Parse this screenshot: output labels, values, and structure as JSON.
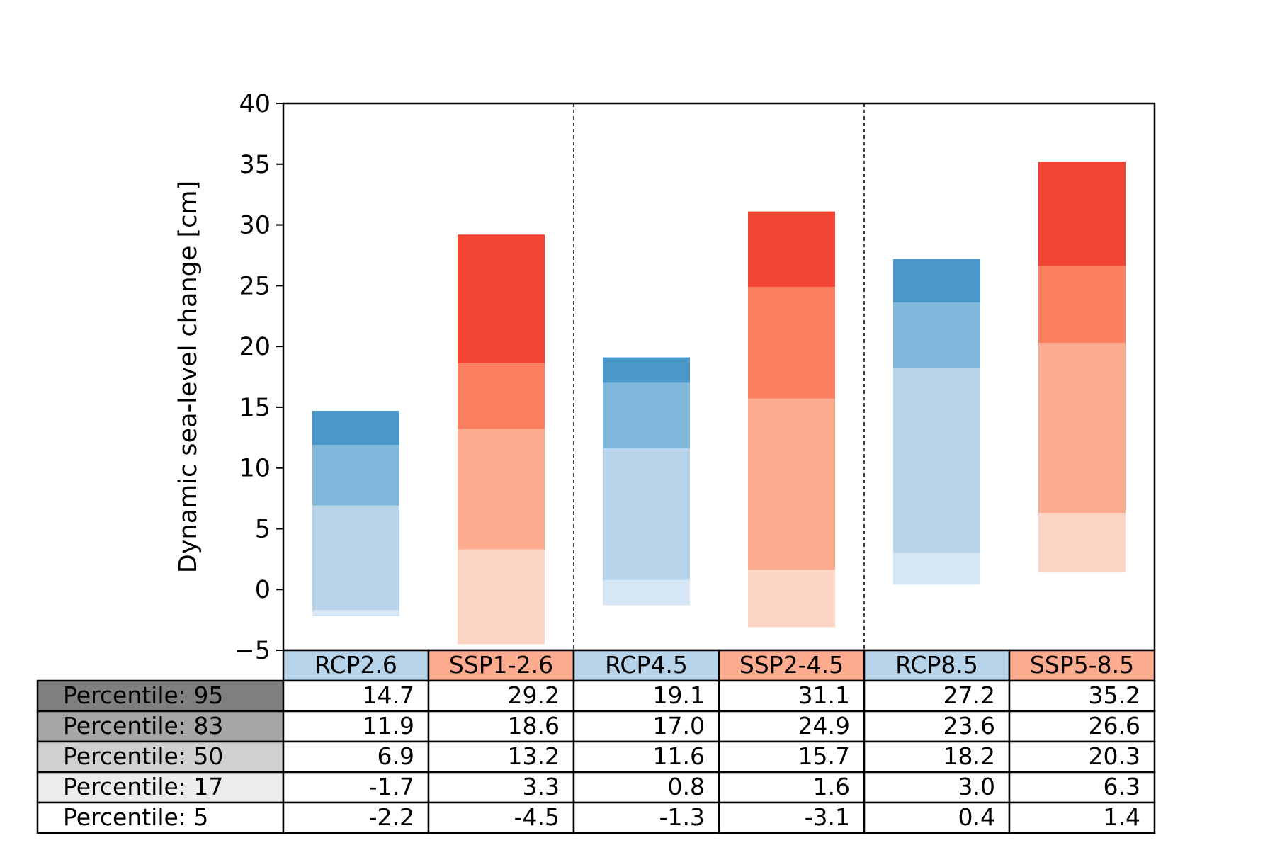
{
  "chart_data": {
    "type": "bar",
    "ylabel": "Dynamic sea-level change [cm]",
    "ylim": [
      -5,
      40
    ],
    "yticks": [
      -5,
      0,
      5,
      10,
      15,
      20,
      25,
      30,
      35,
      40
    ],
    "ytick_labels": [
      "−5",
      "0",
      "5",
      "10",
      "15",
      "20",
      "25",
      "30",
      "35",
      "40"
    ],
    "grid": false,
    "legend": "none",
    "categories": [
      "RCP2.6",
      "SSP1-2.6",
      "RCP4.5",
      "SSP2-4.5",
      "RCP8.5",
      "SSP5-8.5"
    ],
    "category_family": [
      "rcp",
      "ssp",
      "rcp",
      "ssp",
      "rcp",
      "ssp"
    ],
    "group_separators_after": [
      1,
      3
    ],
    "percentile_rows": [
      {
        "label": "Percentile: 95",
        "shade": "#7f7f7f"
      },
      {
        "label": "Percentile: 83",
        "shade": "#a6a6a6"
      },
      {
        "label": "Percentile: 50",
        "shade": "#d0d0d0"
      },
      {
        "label": "Percentile: 17",
        "shade": "#ececec"
      },
      {
        "label": "Percentile: 5",
        "shade": "#ffffff"
      }
    ],
    "series": [
      {
        "name": "Percentile: 95",
        "values": [
          14.7,
          29.2,
          19.1,
          31.1,
          27.2,
          35.2
        ],
        "labels": [
          "14.7",
          "29.2",
          "19.1",
          "31.1",
          "27.2",
          "35.2"
        ]
      },
      {
        "name": "Percentile: 83",
        "values": [
          11.9,
          18.6,
          17.0,
          24.9,
          23.6,
          26.6
        ],
        "labels": [
          "11.9",
          "18.6",
          "17.0",
          "24.9",
          "23.6",
          "26.6"
        ]
      },
      {
        "name": "Percentile: 50",
        "values": [
          6.9,
          13.2,
          11.6,
          15.7,
          18.2,
          20.3
        ],
        "labels": [
          "6.9",
          "13.2",
          "11.6",
          "15.7",
          "18.2",
          "20.3"
        ]
      },
      {
        "name": "Percentile: 17",
        "values": [
          -1.7,
          3.3,
          0.8,
          1.6,
          3.0,
          6.3
        ],
        "labels": [
          "-1.7",
          "3.3",
          "0.8",
          "1.6",
          "3.0",
          "6.3"
        ]
      },
      {
        "name": "Percentile: 5",
        "values": [
          -2.2,
          -4.5,
          -1.3,
          -3.1,
          0.4,
          1.4
        ],
        "labels": [
          "-2.2",
          "-4.5",
          "-1.3",
          "-3.1",
          "0.4",
          "1.4"
        ]
      }
    ],
    "colors": {
      "rcp": [
        "#4a98c9",
        "#7fb8da",
        "#b7d4ea",
        "#d6e6f4"
      ],
      "ssp": [
        "#f14432",
        "#fc7f5f",
        "#fcab8f",
        "#fdd5c4"
      ],
      "rcp_header": "#b7d4ea",
      "ssp_header": "#fcab8f"
    }
  }
}
